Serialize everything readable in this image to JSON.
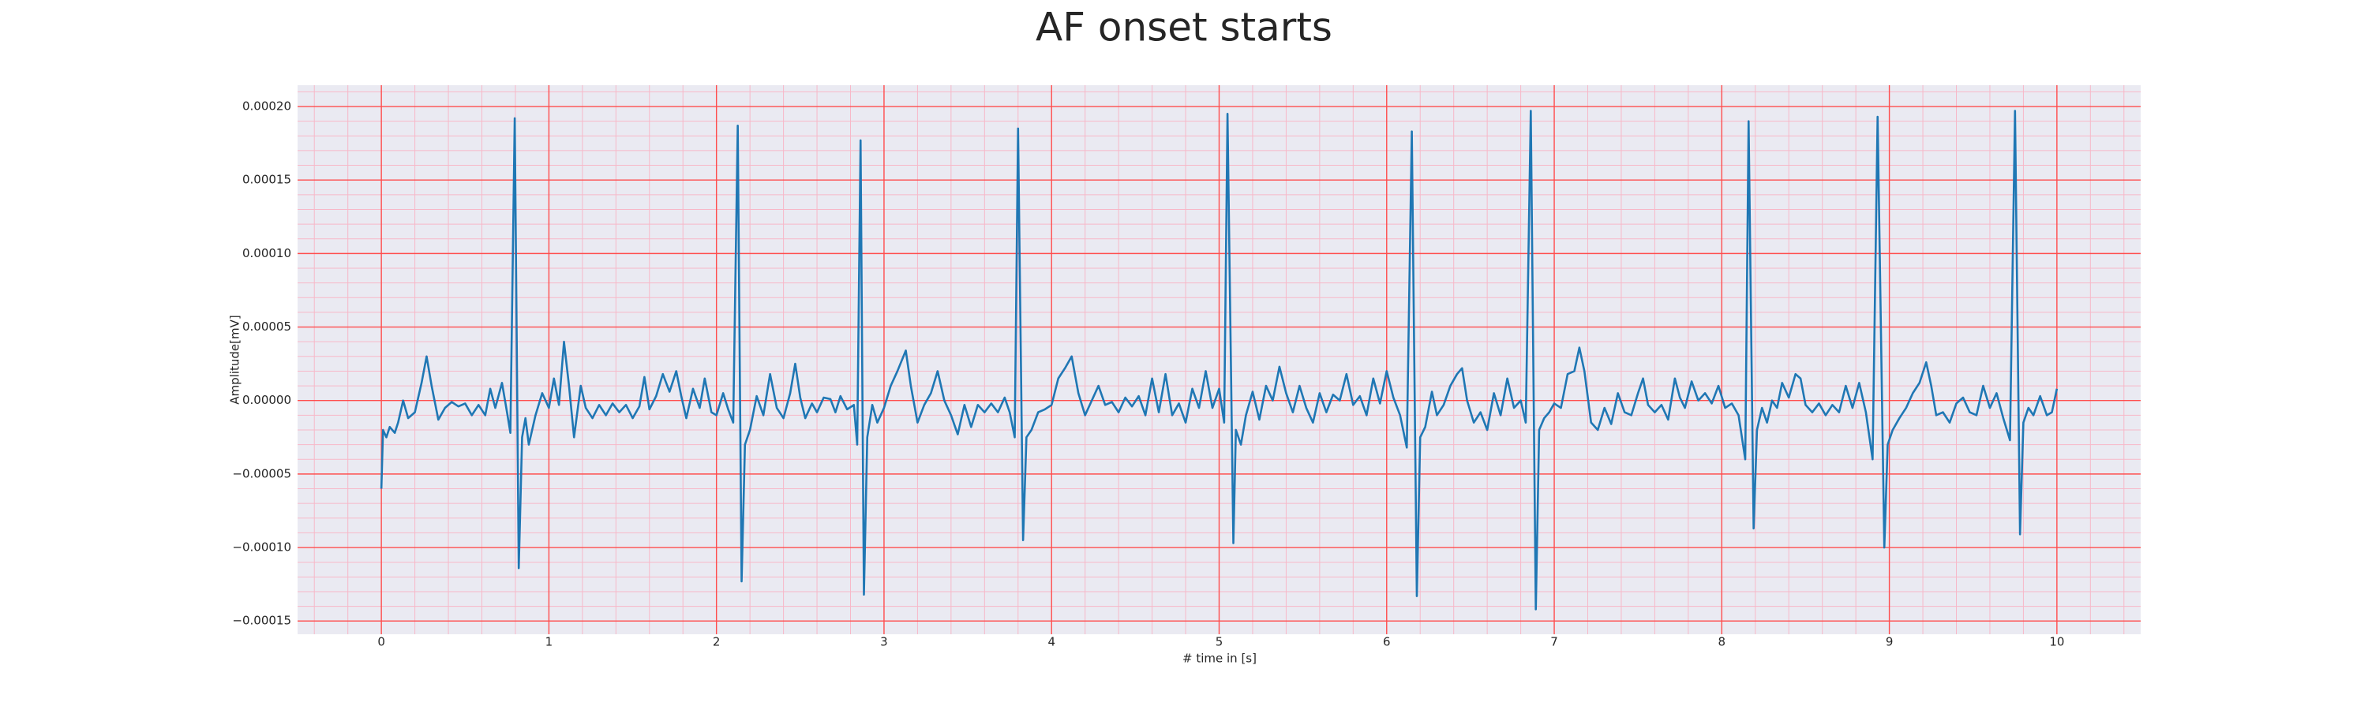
{
  "chart_data": {
    "type": "line",
    "title": "AF onset starts",
    "xlabel": "# time in [s]",
    "ylabel": "Amplitude[mV]",
    "xlim": [
      -0.5,
      10.5
    ],
    "ylim": [
      -0.000159,
      0.0002145
    ],
    "xticks": [
      0,
      1,
      2,
      3,
      4,
      5,
      6,
      7,
      8,
      9,
      10
    ],
    "yticks": [
      {
        "value": -0.00015,
        "label": "−0.00015"
      },
      {
        "value": -0.0001,
        "label": "−0.00010"
      },
      {
        "value": -5e-05,
        "label": "−0.00005"
      },
      {
        "value": 0,
        "label": "0.00000"
      },
      {
        "value": 5e-05,
        "label": "0.00005"
      },
      {
        "value": 0.0001,
        "label": "0.00010"
      },
      {
        "value": 0.00015,
        "label": "0.00015"
      },
      {
        "value": 0.0002,
        "label": "0.00020"
      }
    ],
    "xminorticks": [
      -0.4,
      -0.2,
      0.2,
      0.4,
      0.6,
      0.8,
      1.2,
      1.4,
      1.6,
      1.8,
      2.2,
      2.4,
      2.6,
      2.8,
      3.2,
      3.4,
      3.6,
      3.8,
      4.2,
      4.4,
      4.6,
      4.8,
      5.2,
      5.4,
      5.6,
      5.8,
      6.2,
      6.4,
      6.6,
      6.8,
      7.2,
      7.4,
      7.6,
      7.8,
      8.2,
      8.4,
      8.6,
      8.8,
      9.2,
      9.4,
      9.6,
      9.8,
      10.2,
      10.4
    ],
    "yminorticks": [
      -0.00014,
      -0.00013,
      -0.00012,
      -0.00011,
      -9e-05,
      -8e-05,
      -7e-05,
      -6e-05,
      -4e-05,
      -3e-05,
      -2e-05,
      -1e-05,
      1e-05,
      2e-05,
      3e-05,
      4e-05,
      6e-05,
      7e-05,
      8e-05,
      9e-05,
      0.00011,
      0.00012,
      0.00013,
      0.00014,
      0.00016,
      0.00017,
      0.00018,
      0.00019,
      0.00021
    ],
    "grid": true,
    "minor_grid": true,
    "grid_color": "#ff4d4d",
    "minor_grid_color": "#f7b8c8",
    "background": "#eaeaf2",
    "x": [
      0.0,
      0.01,
      0.03,
      0.05,
      0.08,
      0.1,
      0.13,
      0.16,
      0.2,
      0.24,
      0.27,
      0.3,
      0.34,
      0.38,
      0.42,
      0.46,
      0.5,
      0.54,
      0.58,
      0.62,
      0.65,
      0.68,
      0.72,
      0.75,
      0.77,
      0.796,
      0.82,
      0.84,
      0.86,
      0.88,
      0.92,
      0.96,
      1.0,
      1.03,
      1.06,
      1.09,
      1.12,
      1.15,
      1.19,
      1.22,
      1.26,
      1.3,
      1.34,
      1.38,
      1.42,
      1.46,
      1.5,
      1.54,
      1.57,
      1.6,
      1.64,
      1.68,
      1.72,
      1.76,
      1.79,
      1.82,
      1.86,
      1.9,
      1.93,
      1.97,
      2.0,
      2.04,
      2.07,
      2.1,
      2.127,
      2.15,
      2.17,
      2.2,
      2.24,
      2.28,
      2.32,
      2.36,
      2.4,
      2.44,
      2.47,
      2.5,
      2.53,
      2.57,
      2.6,
      2.64,
      2.68,
      2.71,
      2.74,
      2.78,
      2.82,
      2.84,
      2.86,
      2.88,
      2.9,
      2.93,
      2.96,
      3.0,
      3.04,
      3.08,
      3.13,
      3.16,
      3.2,
      3.24,
      3.28,
      3.32,
      3.36,
      3.4,
      3.44,
      3.48,
      3.52,
      3.56,
      3.6,
      3.64,
      3.68,
      3.72,
      3.75,
      3.78,
      3.8,
      3.83,
      3.85,
      3.88,
      3.92,
      3.96,
      4.0,
      4.04,
      4.08,
      4.12,
      4.16,
      4.2,
      4.24,
      4.28,
      4.32,
      4.36,
      4.4,
      4.44,
      4.48,
      4.52,
      4.56,
      4.6,
      4.64,
      4.68,
      4.72,
      4.76,
      4.8,
      4.84,
      4.88,
      4.92,
      4.96,
      5.0,
      5.03,
      5.05,
      5.085,
      5.1,
      5.13,
      5.16,
      5.2,
      5.24,
      5.28,
      5.32,
      5.36,
      5.4,
      5.44,
      5.48,
      5.52,
      5.56,
      5.6,
      5.64,
      5.68,
      5.72,
      5.76,
      5.8,
      5.84,
      5.88,
      5.92,
      5.96,
      6.0,
      6.04,
      6.08,
      6.12,
      6.15,
      6.18,
      6.2,
      6.23,
      6.27,
      6.3,
      6.34,
      6.38,
      6.42,
      6.45,
      6.48,
      6.52,
      6.56,
      6.6,
      6.64,
      6.68,
      6.72,
      6.76,
      6.8,
      6.83,
      6.86,
      6.89,
      6.91,
      6.94,
      6.97,
      7.0,
      7.04,
      7.08,
      7.12,
      7.15,
      7.18,
      7.22,
      7.26,
      7.3,
      7.34,
      7.38,
      7.42,
      7.46,
      7.5,
      7.53,
      7.56,
      7.6,
      7.64,
      7.68,
      7.72,
      7.75,
      7.78,
      7.82,
      7.86,
      7.9,
      7.94,
      7.98,
      8.02,
      8.06,
      8.1,
      8.14,
      8.16,
      8.19,
      8.21,
      8.24,
      8.27,
      8.3,
      8.33,
      8.36,
      8.4,
      8.44,
      8.47,
      8.5,
      8.54,
      8.58,
      8.62,
      8.66,
      8.7,
      8.74,
      8.78,
      8.82,
      8.86,
      8.9,
      8.93,
      8.97,
      8.99,
      9.02,
      9.06,
      9.1,
      9.14,
      9.18,
      9.22,
      9.25,
      9.28,
      9.32,
      9.36,
      9.4,
      9.44,
      9.48,
      9.52,
      9.56,
      9.6,
      9.64,
      9.68,
      9.72,
      9.75,
      9.78,
      9.8,
      9.83,
      9.86,
      9.9,
      9.94,
      9.97,
      10.0
    ],
    "series": [
      {
        "color": "#1f77b4",
        "values": [
          -6e-05,
          -2e-05,
          -2.5e-05,
          -1.8e-05,
          -2.2e-05,
          -1.5e-05,
          0,
          -1.2e-05,
          -8e-06,
          1.2e-05,
          3e-05,
          1e-05,
          -1.3e-05,
          -5e-06,
          -1e-06,
          -4e-06,
          -2e-06,
          -1e-05,
          -3e-06,
          -1e-05,
          8e-06,
          -5e-06,
          1.2e-05,
          -8e-06,
          -2.2e-05,
          0.000192,
          -0.000114,
          -2.5e-05,
          -1.2e-05,
          -3e-05,
          -1e-05,
          5e-06,
          -5e-06,
          1.5e-05,
          -3e-06,
          4e-05,
          1e-05,
          -2.5e-05,
          1e-05,
          -5e-06,
          -1.2e-05,
          -3e-06,
          -1e-05,
          -2e-06,
          -8e-06,
          -3e-06,
          -1.2e-05,
          -4e-06,
          1.6e-05,
          -6e-06,
          3e-06,
          1.8e-05,
          6e-06,
          2e-05,
          3e-06,
          -1.2e-05,
          8e-06,
          -5e-06,
          1.5e-05,
          -8e-06,
          -1e-05,
          5e-06,
          -6e-06,
          -1.5e-05,
          0.000187,
          -0.000123,
          -3e-05,
          -2e-05,
          3e-06,
          -1e-05,
          1.8e-05,
          -5e-06,
          -1.2e-05,
          5e-06,
          2.5e-05,
          2e-06,
          -1.2e-05,
          -2e-06,
          -8e-06,
          2e-06,
          1e-06,
          -8e-06,
          3e-06,
          -6e-06,
          -3e-06,
          -3e-05,
          0.000177,
          -0.000132,
          -2.5e-05,
          -3e-06,
          -1.5e-05,
          -5e-06,
          1e-05,
          2e-05,
          3.4e-05,
          1e-05,
          -1.5e-05,
          -3e-06,
          5e-06,
          2e-05,
          0,
          -1e-05,
          -2.3e-05,
          -3e-06,
          -1.8e-05,
          -3e-06,
          -8e-06,
          -2e-06,
          -8e-06,
          2e-06,
          -8e-06,
          -2.5e-05,
          0.000185,
          -9.5e-05,
          -2.5e-05,
          -2e-05,
          -8e-06,
          -6e-06,
          -3e-06,
          1.5e-05,
          2.2e-05,
          3e-05,
          5e-06,
          -1e-05,
          0,
          1e-05,
          -3e-06,
          -1e-06,
          -8e-06,
          2e-06,
          -4e-06,
          3e-06,
          -1e-05,
          1.5e-05,
          -8e-06,
          1.8e-05,
          -1e-05,
          -2e-06,
          -1.5e-05,
          8e-06,
          -5e-06,
          2e-05,
          -5e-06,
          8e-06,
          -1.5e-05,
          0.000195,
          -9.7e-05,
          -2e-05,
          -3e-05,
          -1e-05,
          6e-06,
          -1.3e-05,
          1e-05,
          0,
          2.3e-05,
          5e-06,
          -8e-06,
          1e-05,
          -5e-06,
          -1.5e-05,
          5e-06,
          -8e-06,
          4e-06,
          0,
          1.8e-05,
          -3e-06,
          3e-06,
          -1e-05,
          1.5e-05,
          -2e-06,
          2e-05,
          2e-06,
          -1e-05,
          -3.2e-05,
          0.000183,
          -0.000133,
          -2.5e-05,
          -1.8e-05,
          6e-06,
          -1e-05,
          -3e-06,
          1e-05,
          1.8e-05,
          2.2e-05,
          0,
          -1.5e-05,
          -8e-06,
          -2e-05,
          5e-06,
          -1e-05,
          1.5e-05,
          -5e-06,
          0,
          -1.5e-05,
          0.000197,
          -0.000142,
          -2e-05,
          -1.2e-05,
          -8e-06,
          -2e-06,
          -5e-06,
          1.8e-05,
          2e-05,
          3.6e-05,
          2e-05,
          -1.5e-05,
          -2e-05,
          -5e-06,
          -1.6e-05,
          5e-06,
          -8e-06,
          -1e-05,
          5e-06,
          1.5e-05,
          -3e-06,
          -8e-06,
          -3e-06,
          -1.3e-05,
          1.5e-05,
          2e-06,
          -5e-06,
          1.3e-05,
          0,
          5e-06,
          -2e-06,
          1e-05,
          -5e-06,
          -2e-06,
          -1e-05,
          -4e-05,
          0.00019,
          -8.7e-05,
          -2e-05,
          -5e-06,
          -1.5e-05,
          0,
          -5e-06,
          1.2e-05,
          2e-06,
          1.8e-05,
          1.5e-05,
          -3e-06,
          -8e-06,
          -2e-06,
          -1e-05,
          -3e-06,
          -8e-06,
          1e-05,
          -5e-06,
          1.2e-05,
          -8e-06,
          -4e-05,
          0.000193,
          -0.0001,
          -3e-05,
          -2e-05,
          -1.2e-05,
          -5e-06,
          5e-06,
          1.2e-05,
          2.6e-05,
          1e-05,
          -1e-05,
          -8e-06,
          -1.5e-05,
          -2e-06,
          2e-06,
          -8e-06,
          -1e-05,
          1e-05,
          -5e-06,
          5e-06,
          -1.2e-05,
          -2.7e-05,
          0.000197,
          -9.1e-05,
          -1.5e-05,
          -5e-06,
          -1e-05,
          3e-06,
          -1e-05,
          -8e-06,
          8e-06
        ]
      }
    ]
  }
}
